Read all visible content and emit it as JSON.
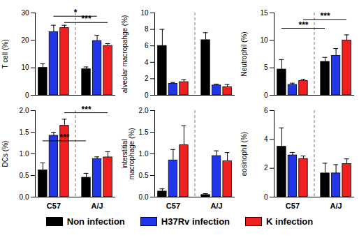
{
  "chart_data": [
    {
      "type": "bar",
      "ylabel": "T cell (%)",
      "categories": [
        "C57",
        "A/J"
      ],
      "series": [
        {
          "name": "Non infection",
          "color": "#000000",
          "values": [
            10,
            9.5
          ],
          "errors": [
            1.5,
            0.8
          ]
        },
        {
          "name": "H37Rv infection",
          "color": "#2036e8",
          "values": [
            23,
            19.8
          ],
          "errors": [
            2.5,
            2
          ]
        },
        {
          "name": "K infection",
          "color": "#f02020",
          "values": [
            24.5,
            18
          ],
          "errors": [
            1,
            0.8
          ]
        }
      ],
      "ylim": [
        0,
        30
      ],
      "yticks": [
        0,
        10,
        20,
        30
      ],
      "tick_labels": "y",
      "annotations": [
        {
          "text": "*",
          "from": {
            "category": "C57",
            "series": "H37Rv infection"
          },
          "to": {
            "category": "A/J",
            "series": "H37Rv infection"
          },
          "y": 28.8
        },
        {
          "text": "***",
          "from": {
            "category": "C57",
            "series": "K infection"
          },
          "to": {
            "category": "A/J",
            "series": "K infection"
          },
          "y": 26.5
        }
      ]
    },
    {
      "type": "bar",
      "ylabel": "alveolar macropahge (%)",
      "categories": [
        "C57",
        "A/J"
      ],
      "series": [
        {
          "name": "Non infection",
          "color": "#000000",
          "values": [
            6,
            6.7
          ],
          "errors": [
            2,
            0.9
          ]
        },
        {
          "name": "H37Rv infection",
          "color": "#2036e8",
          "values": [
            1.4,
            1.2
          ],
          "errors": [
            0.15,
            0.15
          ]
        },
        {
          "name": "K infection",
          "color": "#f02020",
          "values": [
            1.6,
            1.0
          ],
          "errors": [
            0.3,
            0.3
          ]
        }
      ],
      "ylim": [
        0,
        10
      ],
      "yticks": [
        0,
        2,
        4,
        6,
        8,
        10
      ],
      "tick_labels": "y"
    },
    {
      "type": "bar",
      "ylabel": "Neutrophil (%)",
      "categories": [
        "C57",
        "A/J"
      ],
      "series": [
        {
          "name": "Non infection",
          "color": "#000000",
          "values": [
            4.7,
            6.1
          ],
          "errors": [
            1.8,
            0.8
          ]
        },
        {
          "name": "H37Rv infection",
          "color": "#2036e8",
          "values": [
            1.9,
            7.2
          ],
          "errors": [
            0.3,
            1.3
          ]
        },
        {
          "name": "K infection",
          "color": "#f02020",
          "values": [
            2.6,
            10
          ],
          "errors": [
            0.3,
            1
          ]
        }
      ],
      "ylim": [
        0,
        15
      ],
      "yticks": [
        0,
        5,
        10,
        15
      ],
      "tick_labels": "y",
      "annotations": [
        {
          "text": "***",
          "from": {
            "category": "C57",
            "series": "Non infection"
          },
          "to": {
            "category": "A/J",
            "series": "Non infection"
          },
          "y": 12.2
        },
        {
          "text": "***",
          "from": {
            "category": "C57",
            "series": "K infection"
          },
          "to": {
            "category": "A/J",
            "series": "K infection"
          },
          "y": 13.8
        }
      ]
    },
    {
      "type": "bar",
      "ylabel": "DCs (%)",
      "categories": [
        "C57",
        "A/J"
      ],
      "series": [
        {
          "name": "Non infection",
          "color": "#000000",
          "values": [
            0.62,
            0.45
          ],
          "errors": [
            0.17,
            0.1
          ]
        },
        {
          "name": "H37Rv infection",
          "color": "#2036e8",
          "values": [
            1.42,
            0.88
          ],
          "errors": [
            0.08,
            0.05
          ]
        },
        {
          "name": "K infection",
          "color": "#f02020",
          "values": [
            1.65,
            0.92
          ],
          "errors": [
            0.15,
            0.13
          ]
        }
      ],
      "ylim": [
        0,
        2
      ],
      "yticks": [
        {
          "value": 0,
          "label": "0.0"
        },
        0.5,
        {
          "value": 1,
          "label": "1.0"
        },
        1.5,
        {
          "value": 2,
          "label": "2.0"
        }
      ],
      "annotations": [
        {
          "text": "***",
          "from": {
            "category": "C57",
            "series": "Non infection"
          },
          "to": {
            "category": "A/J",
            "series": "Non infection"
          },
          "y": 1.3
        },
        {
          "text": "***",
          "from": {
            "category": "C57",
            "series": "K infection"
          },
          "to": {
            "category": "A/J",
            "series": "K infection"
          },
          "y": 1.95
        }
      ]
    },
    {
      "type": "bar",
      "ylabel": "interstitial\nmacrophage (%)",
      "categories": [
        "C57",
        "A/J"
      ],
      "series": [
        {
          "name": "Non infection",
          "color": "#000000",
          "values": [
            0.13,
            0.05
          ],
          "errors": [
            0.06,
            0.03
          ]
        },
        {
          "name": "H37Rv infection",
          "color": "#2036e8",
          "values": [
            0.85,
            0.95
          ],
          "errors": [
            0.25,
            0.12
          ]
        },
        {
          "name": "K infection",
          "color": "#f02020",
          "values": [
            1.2,
            0.83
          ],
          "errors": [
            0.45,
            0.2
          ]
        }
      ],
      "ylim": [
        0,
        2
      ],
      "yticks": [
        {
          "value": 0,
          "label": "0.0"
        },
        0.5,
        {
          "value": 1,
          "label": "1.0"
        },
        1.5,
        {
          "value": 2,
          "label": "2.0"
        }
      ]
    },
    {
      "type": "bar",
      "ylabel": "eosinophil (%)",
      "categories": [
        "C57",
        "A/J"
      ],
      "series": [
        {
          "name": "Non infection",
          "color": "#000000",
          "values": [
            3.5,
            1.65
          ],
          "errors": [
            1.3,
            0.7
          ]
        },
        {
          "name": "H37Rv infection",
          "color": "#2036e8",
          "values": [
            2.9,
            1.65
          ],
          "errors": [
            0.2,
            0.6
          ]
        },
        {
          "name": "K infection",
          "color": "#f02020",
          "values": [
            2.65,
            2.3
          ],
          "errors": [
            0.2,
            0.35
          ]
        }
      ],
      "ylim": [
        0,
        6
      ],
      "yticks": [
        0,
        2,
        4,
        6
      ]
    }
  ]
}
